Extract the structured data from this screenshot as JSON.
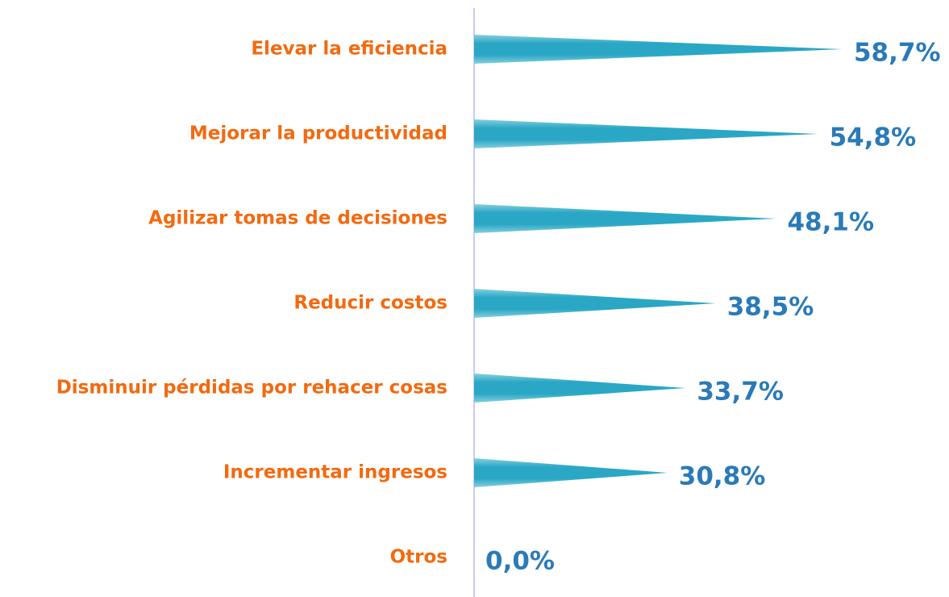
{
  "chart_data": {
    "type": "bar",
    "orientation": "horizontal",
    "categories": [
      "Elevar la eficiencia",
      "Mejorar la productividad",
      "Agilizar tomas de decisiones",
      "Reducir costos",
      "Disminuir pérdidas por rehacer cosas",
      "Incrementar ingresos",
      "Otros"
    ],
    "values": [
      58.7,
      54.8,
      48.1,
      38.5,
      33.7,
      30.8,
      0.0
    ],
    "value_labels": [
      "58,7%",
      "54,8%",
      "48,1%",
      "38,5%",
      "33,7%",
      "30,8%",
      "0,0%"
    ],
    "color": "#2aa7c5",
    "label_color": "#f26a10",
    "value_label_color": "#2a7ab8",
    "xlim": [
      0,
      75
    ]
  }
}
